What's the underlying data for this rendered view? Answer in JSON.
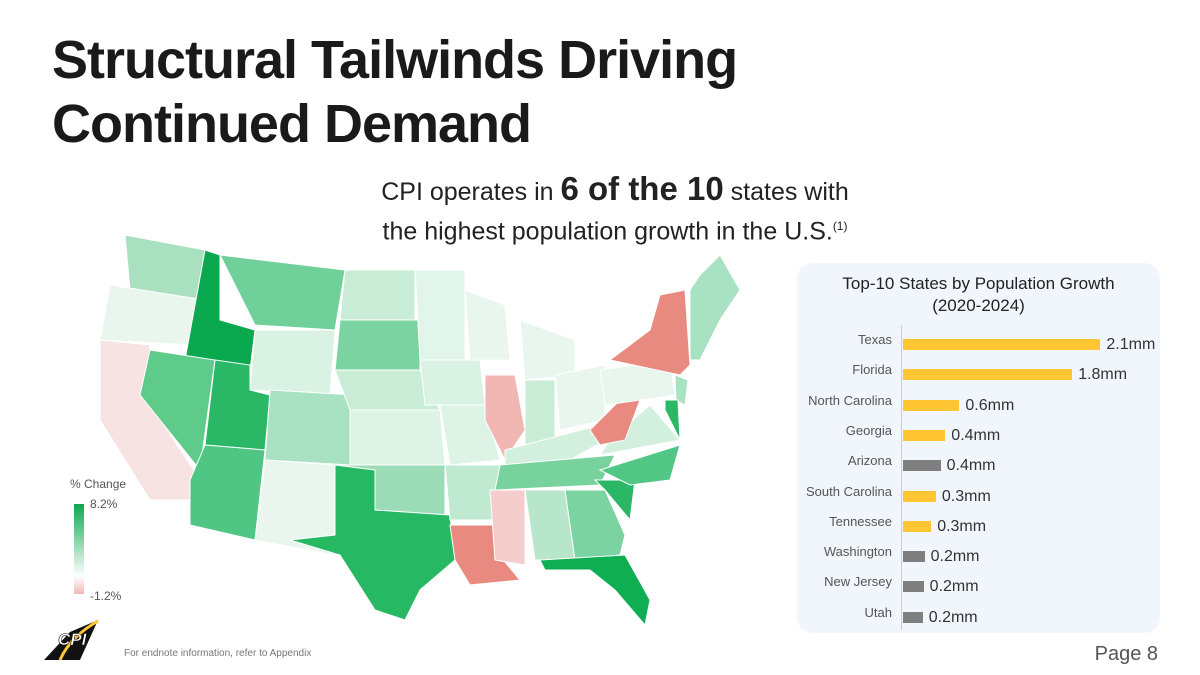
{
  "title_line1": "Structural Tailwinds Driving",
  "title_line2": "Continued Demand",
  "subtitle": {
    "pre": "CPI operates in ",
    "bold": "6 of the 10",
    "post": " states with",
    "line2": "the highest population growth in the U.S.",
    "sup": "(1)"
  },
  "legend": {
    "title": "% Change",
    "max": "8.2%",
    "min": "-1.2%"
  },
  "colors": {
    "cpi_state": "#FFC533",
    "other_state": "#7F7F7F"
  },
  "chart_data": {
    "type": "bar",
    "title": "Top-10 States by Population Growth (2020-2024)",
    "title_line1": "Top-10 States by Population Growth",
    "title_line2": "(2020-2024)",
    "unit": "mm",
    "categories": [
      "Texas",
      "Florida",
      "North Carolina",
      "Georgia",
      "Arizona",
      "South Carolina",
      "Tennessee",
      "Washington",
      "New Jersey",
      "Utah"
    ],
    "values": [
      2.1,
      1.8,
      0.6,
      0.45,
      0.4,
      0.35,
      0.3,
      0.23,
      0.22,
      0.21
    ],
    "labels": [
      "2.1mm",
      "1.8mm",
      "0.6mm",
      "0.4mm",
      "0.4mm",
      "0.3mm",
      "0.3mm",
      "0.2mm",
      "0.2mm",
      "0.2mm"
    ],
    "cpi_operates": [
      true,
      true,
      true,
      true,
      false,
      true,
      true,
      false,
      false,
      false
    ]
  },
  "logo": "CPI",
  "footnote": "For endnote information, refer to Appendix",
  "page": "Page 8"
}
